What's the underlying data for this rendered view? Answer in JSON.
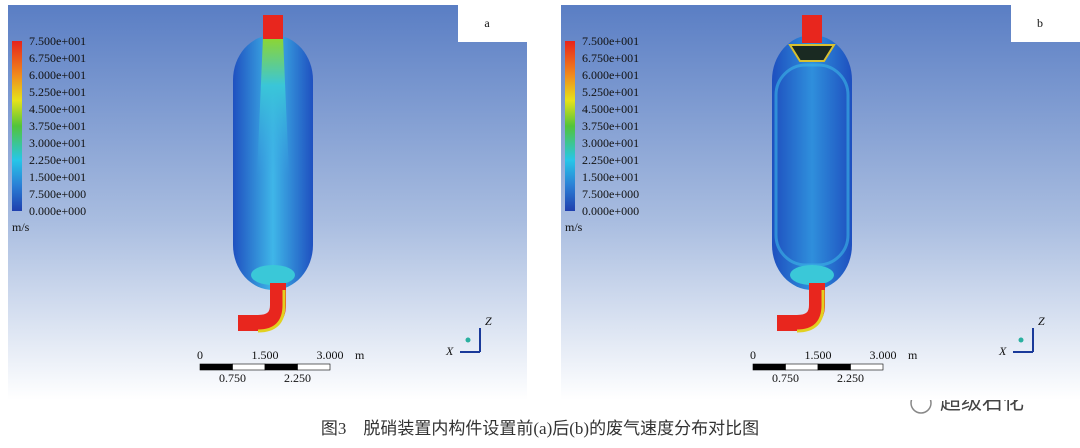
{
  "panels": [
    {
      "label": "a",
      "legend": {
        "ticks": [
          "7.500e+001",
          "6.750e+001",
          "6.000e+001",
          "5.250e+001",
          "4.500e+001",
          "3.750e+001",
          "3.000e+001",
          "2.250e+001",
          "1.500e+001",
          "7.500e+000",
          "0.000e+000"
        ],
        "unit": "m/s"
      },
      "scale_bar": {
        "top": [
          "0",
          "1.500",
          "3.000"
        ],
        "unit": "m",
        "bottom": [
          "0.750",
          "2.250"
        ]
      },
      "axes": {
        "z": "Z",
        "x": "X"
      }
    },
    {
      "label": "b",
      "legend": {
        "ticks": [
          "7.500e+001",
          "6.750e+001",
          "6.000e+001",
          "5.250e+001",
          "4.500e+001",
          "3.750e+001",
          "3.000e+001",
          "2.250e+001",
          "1.500e+001",
          "7.500e+000",
          "0.000e+000"
        ],
        "unit": "m/s"
      },
      "scale_bar": {
        "top": [
          "0",
          "1.500",
          "3.000"
        ],
        "unit": "m",
        "bottom": [
          "0.750",
          "2.250"
        ]
      },
      "axes": {
        "z": "Z",
        "x": "X"
      }
    }
  ],
  "caption": "图3　脱硝装置内构件设置前(a)后(b)的废气速度分布对比图",
  "watermark": "超级石化"
}
